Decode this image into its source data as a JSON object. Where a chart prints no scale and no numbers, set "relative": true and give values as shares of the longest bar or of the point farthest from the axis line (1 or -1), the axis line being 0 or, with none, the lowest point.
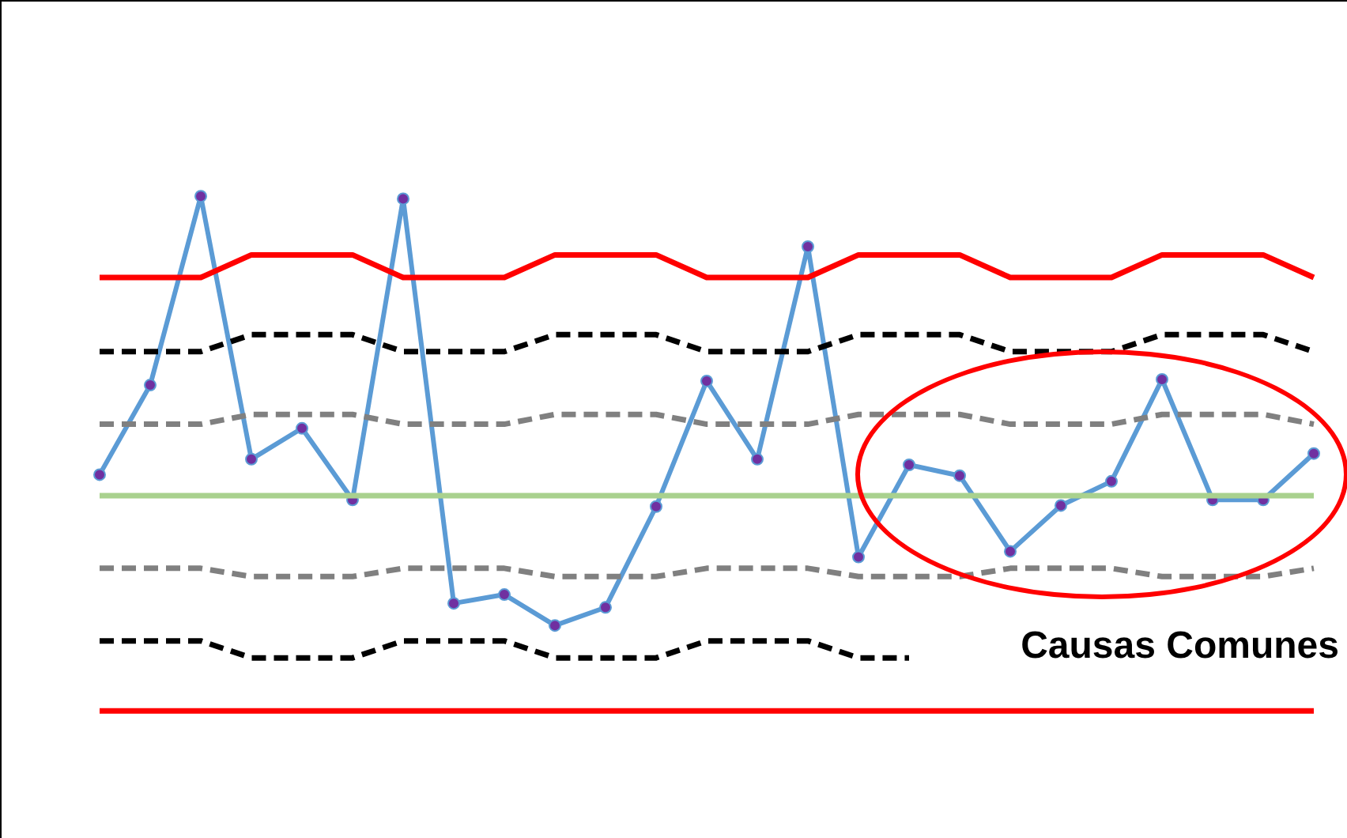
{
  "chart_data": {
    "type": "line",
    "relative": true,
    "legend": false,
    "categories": [
      null,
      null,
      null,
      null,
      null,
      null,
      null,
      null,
      null,
      null,
      null,
      null,
      null,
      null,
      null,
      null,
      null,
      null,
      null,
      null,
      null,
      null,
      null,
      null,
      null
    ],
    "annotations": [
      "Causas Comunes"
    ],
    "series": [
      {
        "color": "#ff0000",
        "line_style": "solid",
        "marker": "none",
        "values": [
          0.842,
          0.842,
          0.842,
          0.886,
          0.886,
          0.886,
          0.842,
          0.842,
          0.842,
          0.886,
          0.886,
          0.886,
          0.842,
          0.842,
          0.842,
          0.886,
          0.886,
          0.886,
          0.842,
          0.842,
          0.842,
          0.886,
          0.886,
          0.886,
          0.842
        ]
      },
      {
        "color": "#000000",
        "line_style": "dashed",
        "marker": "none",
        "values": [
          0.698,
          0.698,
          0.698,
          0.731,
          0.731,
          0.731,
          0.698,
          0.698,
          0.698,
          0.731,
          0.731,
          0.731,
          0.698,
          0.698,
          0.698,
          0.731,
          0.731,
          0.731,
          0.698,
          0.698,
          0.698,
          0.731,
          0.731,
          0.731,
          0.698
        ]
      },
      {
        "color": "#808080",
        "line_style": "dashed",
        "marker": "none",
        "values": [
          0.557,
          0.557,
          0.557,
          0.576,
          0.576,
          0.576,
          0.557,
          0.557,
          0.557,
          0.576,
          0.576,
          0.576,
          0.557,
          0.557,
          0.557,
          0.576,
          0.576,
          0.576,
          0.557,
          0.557,
          0.557,
          0.576,
          0.576,
          0.576,
          0.557
        ]
      },
      {
        "color": "#a9d18e",
        "line_style": "solid",
        "marker": "none",
        "values": [
          0.418,
          0.418,
          0.418,
          0.418,
          0.418,
          0.418,
          0.418,
          0.418,
          0.418,
          0.418,
          0.418,
          0.418,
          0.418,
          0.418,
          0.418,
          0.418,
          0.418,
          0.418,
          0.418,
          0.418,
          0.418,
          0.418,
          0.418,
          0.418,
          0.418
        ]
      },
      {
        "color": "#808080",
        "line_style": "dashed",
        "marker": "none",
        "values": [
          0.277,
          0.277,
          0.277,
          0.261,
          0.261,
          0.261,
          0.277,
          0.277,
          0.277,
          0.261,
          0.261,
          0.261,
          0.277,
          0.277,
          0.277,
          0.261,
          0.261,
          0.261,
          0.277,
          0.277,
          0.277,
          0.261,
          0.261,
          0.261,
          0.277
        ]
      },
      {
        "color": "#000000",
        "line_style": "dashed",
        "marker": "none",
        "values": [
          0.136,
          0.136,
          0.136,
          0.103,
          0.103,
          0.103,
          0.136,
          0.136,
          0.136,
          0.103,
          0.103,
          0.103,
          0.136,
          0.136,
          0.136,
          0.103,
          0.103,
          null,
          null,
          null,
          null,
          null,
          null,
          null,
          null
        ]
      },
      {
        "color": "#ff0000",
        "line_style": "solid",
        "marker": "none",
        "values": [
          0,
          0,
          0,
          0,
          0,
          0,
          0,
          0,
          0,
          0,
          0,
          0,
          0,
          0,
          0,
          0,
          0,
          0,
          0,
          0,
          0,
          0,
          0,
          0,
          0
        ]
      },
      {
        "color": "#5b9bd5",
        "line_style": "solid",
        "marker": "circle",
        "values": [
          0.459,
          0.633,
          1,
          0.489,
          0.549,
          0.41,
          0.995,
          0.209,
          0.226,
          0.166,
          0.201,
          0.397,
          0.641,
          0.489,
          0.902,
          0.299,
          0.478,
          0.457,
          0.31,
          0.399,
          0.446,
          0.644,
          0.41,
          0.41,
          0.5
        ]
      }
    ]
  }
}
